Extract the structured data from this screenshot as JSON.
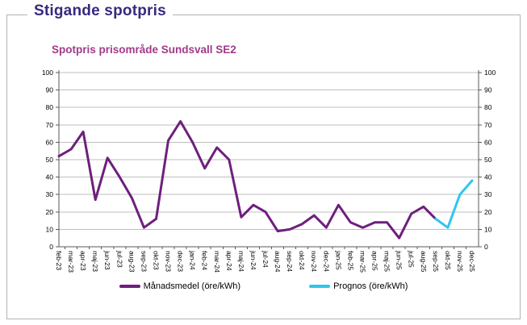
{
  "panel": {
    "title": "Stigande spotpris"
  },
  "chart_data": {
    "type": "line",
    "title": "Spotpris prisområde Sundsvall SE2",
    "unit": "öre/kWh",
    "categories": [
      "feb-23",
      "mar-23",
      "apr-23",
      "maj-23",
      "jun-23",
      "jul-23",
      "aug-23",
      "sep-23",
      "okt-23",
      "nov-23",
      "dec-23",
      "jan-24",
      "feb-24",
      "mar-24",
      "apr-24",
      "maj-24",
      "jun-24",
      "jul-24",
      "aug-24",
      "sep-24",
      "okt-24",
      "nov-24",
      "dec-24",
      "jan-25",
      "feb-25",
      "mar-25",
      "apr-25",
      "maj-25",
      "jun-25",
      "jul-25",
      "aug-25",
      "sep-25",
      "okt-25",
      "nov-25",
      "dec-25"
    ],
    "series": [
      {
        "name": "Månadsmedel (öre/kWh)",
        "color": "#6e1f7d",
        "values": [
          52,
          56,
          66,
          27,
          51,
          40,
          28,
          11,
          16,
          61,
          72,
          60,
          45,
          57,
          50,
          17,
          24,
          20,
          9,
          10,
          13,
          18,
          11,
          24,
          14,
          11,
          14,
          14,
          5,
          19,
          23,
          16,
          null,
          null,
          null
        ]
      },
      {
        "name": "Prognos (öre/kWh)",
        "color": "#2fc6ef",
        "values": [
          null,
          null,
          null,
          null,
          null,
          null,
          null,
          null,
          null,
          null,
          null,
          null,
          null,
          null,
          null,
          null,
          null,
          null,
          null,
          null,
          null,
          null,
          null,
          null,
          null,
          null,
          null,
          null,
          null,
          null,
          null,
          16,
          11,
          30,
          38
        ]
      }
    ],
    "xlabel": "",
    "ylabel": "",
    "ylim": [
      0,
      100
    ],
    "ytick_step": 10,
    "y_axis_sides": [
      "left",
      "right"
    ],
    "grid": "horizontal",
    "legend_position": "bottom",
    "colors": {
      "grid": "#bfbfbf",
      "axis": "#595959",
      "text": "#000000"
    }
  }
}
